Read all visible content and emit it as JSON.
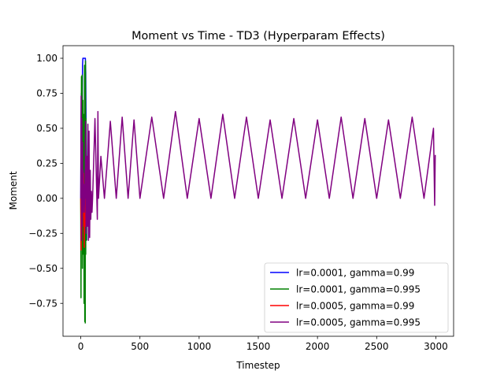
{
  "chart_data": {
    "type": "line",
    "title": "Moment vs Time - TD3 (Hyperparam Effects)",
    "xlabel": "Timestep",
    "ylabel": "Moment",
    "xlim": [
      -150,
      3150
    ],
    "ylim": [
      -0.985,
      1.09
    ],
    "xticks": [
      0,
      500,
      1000,
      1500,
      2000,
      2500,
      3000
    ],
    "yticks": [
      -0.75,
      -0.5,
      -0.25,
      0.0,
      0.25,
      0.5,
      0.75,
      1.0
    ],
    "xtick_labels": [
      "0",
      "500",
      "1000",
      "1500",
      "2000",
      "2500",
      "3000"
    ],
    "ytick_labels": [
      "−0.75",
      "−0.50",
      "−0.25",
      "0.00",
      "0.25",
      "0.50",
      "0.75",
      "1.00"
    ],
    "grid": false,
    "legend_position": "lower-right",
    "series": [
      {
        "name": "lr=0.0001, gamma=0.99",
        "color": "#0000ff",
        "x": [
          0,
          2,
          5,
          8,
          10,
          12,
          15,
          18,
          20,
          22,
          25,
          28,
          30,
          33,
          36,
          39,
          42,
          45,
          48,
          50
        ],
        "y": [
          0.0,
          0.45,
          0.75,
          0.55,
          0.87,
          0.6,
          0.95,
          1.0,
          1.0,
          1.0,
          1.0,
          1.0,
          1.0,
          1.0,
          1.0,
          1.0,
          0.9,
          0.5,
          0.1,
          -0.3
        ]
      },
      {
        "name": "lr=0.0001, gamma=0.995",
        "color": "#008000",
        "x": [
          0,
          2,
          4,
          6,
          8,
          10,
          12,
          14,
          16,
          18,
          20,
          22,
          24,
          26,
          28,
          30,
          32,
          34,
          36,
          38,
          40,
          42,
          44,
          46,
          48,
          50,
          52,
          54
        ],
        "y": [
          0.0,
          -0.71,
          0.5,
          0.87,
          -0.3,
          0.1,
          0.88,
          -0.5,
          0.3,
          0.7,
          -0.2,
          0.6,
          -0.4,
          0.2,
          -0.75,
          0.1,
          0.95,
          -0.88,
          0.3,
          -0.89,
          0.98,
          -0.4,
          0.57,
          0.1,
          -0.3,
          0.05,
          -0.1,
          0.0
        ]
      },
      {
        "name": "lr=0.0005, gamma=0.99",
        "color": "#ff0000",
        "x": [
          0,
          3,
          6,
          9,
          12,
          15,
          18,
          21,
          24,
          27,
          30,
          33,
          36,
          40
        ],
        "y": [
          0.0,
          -0.37,
          0.2,
          -0.3,
          0.1,
          -0.2,
          0.15,
          -0.1,
          0.18,
          -0.05,
          -0.35,
          0.1,
          -0.2,
          0.0
        ]
      },
      {
        "name": "lr=0.0005, gamma=0.995",
        "color": "#800080",
        "x": [
          0,
          3,
          6,
          9,
          12,
          15,
          18,
          21,
          24,
          27,
          30,
          33,
          36,
          40,
          45,
          50,
          55,
          60,
          65,
          70,
          75,
          80,
          85,
          90,
          95,
          100,
          120,
          140,
          145,
          150,
          170,
          200,
          250,
          300,
          350,
          400,
          450,
          500,
          600,
          700,
          800,
          900,
          1000,
          1100,
          1200,
          1300,
          1400,
          1500,
          1600,
          1700,
          1800,
          1900,
          2000,
          2100,
          2200,
          2300,
          2400,
          2500,
          2600,
          2700,
          2800,
          2900,
          2980,
          2990,
          2995
        ],
        "y": [
          0.0,
          0.73,
          -0.3,
          0.57,
          -0.2,
          0.4,
          -0.1,
          0.2,
          -0.05,
          0.1,
          -0.1,
          0.05,
          0.0,
          0.55,
          -0.25,
          0.3,
          -0.2,
          0.53,
          -0.3,
          0.48,
          -0.28,
          0.2,
          -0.15,
          0.05,
          -0.1,
          0.0,
          0.57,
          -0.15,
          0.62,
          0.0,
          0.3,
          0.0,
          0.55,
          0.0,
          0.58,
          0.0,
          0.56,
          0.0,
          0.58,
          0.0,
          0.62,
          0.0,
          0.57,
          0.0,
          0.6,
          0.0,
          0.58,
          0.0,
          0.56,
          0.0,
          0.57,
          0.0,
          0.56,
          0.0,
          0.58,
          0.0,
          0.57,
          0.0,
          0.56,
          0.0,
          0.58,
          0.0,
          0.5,
          -0.05,
          0.31
        ]
      }
    ]
  }
}
